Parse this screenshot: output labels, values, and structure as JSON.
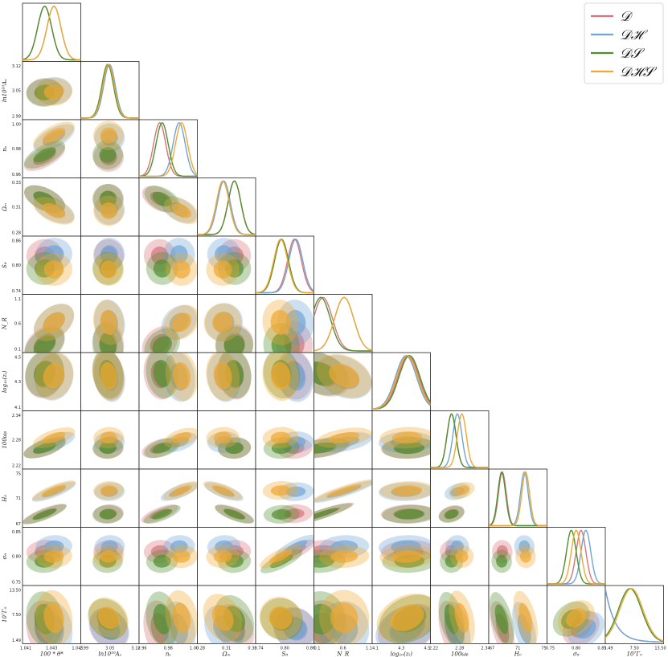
{
  "chart_data": {
    "type": "corner",
    "params": [
      {
        "key": "theta",
        "label": "100 * θ*",
        "ticks": [
          "1.041",
          "1.043",
          "1.045"
        ],
        "range": [
          1.0405,
          1.0455
        ],
        "mean": {
          "D": 1.0424,
          "DH": 1.0432,
          "DS": 1.0424,
          "DHS": 1.0432
        },
        "sd": 0.0006
      },
      {
        "key": "As",
        "label": "ln10¹⁰Aₛ",
        "ticks": [
          "2.99",
          "3.05",
          "3.12"
        ],
        "range": [
          2.99,
          3.12
        ],
        "mean": {
          "D": 3.052,
          "DH": 3.054,
          "DS": 3.05,
          "DHS": 3.052
        },
        "sd": 0.013
      },
      {
        "key": "ns",
        "label": "nₛ",
        "ticks": [
          "0.96",
          "0.98",
          "1.00"
        ],
        "range": [
          0.955,
          1.003
        ],
        "mean": {
          "D": 0.972,
          "DH": 0.988,
          "DS": 0.974,
          "DHS": 0.99
        },
        "sd": 0.005
      },
      {
        "key": "Om",
        "label": "Ωₘ",
        "ticks": [
          "0.28",
          "0.31",
          "0.33"
        ],
        "range": [
          0.28,
          0.335
        ],
        "mean": {
          "D": 0.315,
          "DH": 0.305,
          "DS": 0.315,
          "DHS": 0.304
        },
        "sd": 0.006
      },
      {
        "key": "S8",
        "label": "S₈",
        "ticks": [
          "0.74",
          "0.80",
          "0.86"
        ],
        "range": [
          0.735,
          0.87
        ],
        "mean": {
          "D": 0.825,
          "DH": 0.828,
          "DS": 0.795,
          "DHS": 0.793
        },
        "sd": 0.016
      },
      {
        "key": "Neff",
        "label": "N_R",
        "ticks": [
          "0.1",
          "0.6",
          "1.1"
        ],
        "range": [
          0.05,
          1.15
        ],
        "mean": {
          "D": 0.22,
          "DH": 0.62,
          "DS": 0.18,
          "DHS": 0.62
        },
        "sd": 0.18
      },
      {
        "key": "zt",
        "label": "log₁₀(zₜ)",
        "ticks": [
          "4.1",
          "4.3",
          "4.5"
        ],
        "range": [
          4.05,
          4.55
        ],
        "mean": {
          "D": 4.36,
          "DH": 4.34,
          "DS": 4.37,
          "DHS": 4.35
        },
        "sd": 0.09
      },
      {
        "key": "wb",
        "label": "100ωᵦ",
        "ticks": [
          "2.22",
          "2.28",
          "2.34"
        ],
        "range": [
          2.215,
          2.345
        ],
        "mean": {
          "D": 2.262,
          "DH": 2.275,
          "DS": 2.262,
          "DHS": 2.285
        },
        "sd": 0.01
      },
      {
        "key": "H0",
        "label": "H₀",
        "ticks": [
          "67",
          "71",
          "75"
        ],
        "range": [
          66.5,
          75.5
        ],
        "mean": {
          "D": 68.6,
          "DH": 72.0,
          "DS": 68.5,
          "DHS": 72.2
        },
        "sd": 0.6
      },
      {
        "key": "s8",
        "label": "σ₈",
        "ticks": [
          "0.75",
          "0.80",
          "0.85"
        ],
        "range": [
          0.74,
          0.86
        ],
        "mean": {
          "D": 0.81,
          "DH": 0.82,
          "DS": 0.79,
          "DHS": 0.8
        },
        "sd": 0.01
      },
      {
        "key": "G0",
        "label": "10⁷Γ₀",
        "ticks": [
          "1.49",
          "7.50",
          "13.50"
        ],
        "range": [
          1.0,
          14.0
        ],
        "mean": {
          "D": 4.5,
          "DH": 4.3,
          "DS": 6.5,
          "DHS": 6.8
        },
        "sd": 2.6
      }
    ],
    "series": [
      {
        "id": "D",
        "name": "𝒟",
        "color": "#d9737c"
      },
      {
        "id": "DH",
        "name": "𝒟ℋ",
        "color": "#6fa5d6"
      },
      {
        "id": "DS",
        "name": "𝒟𝒮",
        "color": "#4f8f2f"
      },
      {
        "id": "DHS",
        "name": "𝒟ℋ𝒮",
        "color": "#f0a830"
      }
    ],
    "legend_position": "top-right",
    "grid": false
  }
}
